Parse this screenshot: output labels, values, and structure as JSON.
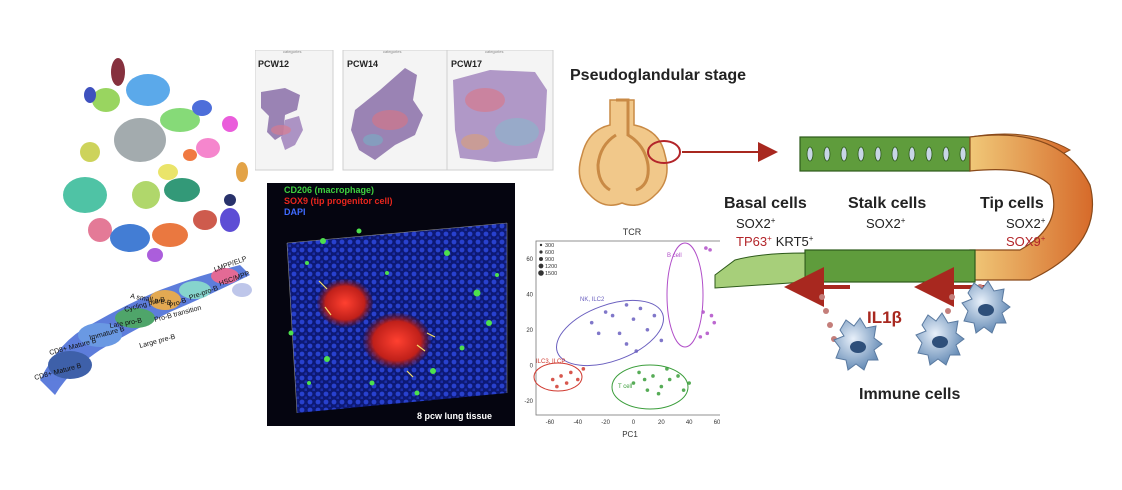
{
  "spatial": {
    "panels": [
      {
        "label": "PCW12",
        "header": "categories"
      },
      {
        "label": "PCW14",
        "header": "categories"
      },
      {
        "label": "PCW17",
        "header": "categories"
      }
    ]
  },
  "umap": {
    "cluster_labels": [
      "LMPP/ELP",
      "HSC/MPP",
      "Pre-pro-B",
      "Pro-B",
      "A small pre-B",
      "Cycling pre-B",
      "Pro-B transition",
      "Late pro-B",
      "Immature B",
      "Large pre-B",
      "CD8+ Mature B",
      "CD8+ Mature B"
    ]
  },
  "microscopy": {
    "legend": [
      {
        "text": "CD206 (macrophage)",
        "color": "#3fd13f"
      },
      {
        "text": "SOX9 (tip progenitor cell)",
        "color": "#e8261d"
      },
      {
        "text": "DAPI",
        "color": "#3f6bff"
      }
    ],
    "caption": "8 pcw lung tissue"
  },
  "pca": {
    "title": "TCR",
    "xlabel": "PC1",
    "size_legend": [
      "300",
      "600",
      "900",
      "1200",
      "1500"
    ],
    "group_labels": [
      {
        "text": "B cell",
        "color": "#b04dc8"
      },
      {
        "text": "NK, ILC2",
        "color": "#6a5fbf"
      },
      {
        "text": "ILC3, ILCP",
        "color": "#d0392f"
      },
      {
        "text": "T cell",
        "color": "#3a9d3a"
      }
    ]
  },
  "chart_data": {
    "type": "scatter",
    "title": "TCR",
    "xlabel": "PC1",
    "ylabel": "",
    "xlim": [
      -70,
      65
    ],
    "ylim": [
      -28,
      70
    ],
    "x_ticks": [
      -60,
      -40,
      -20,
      0,
      20,
      40,
      60
    ],
    "y_ticks": [
      -20,
      0,
      20,
      40,
      60
    ],
    "series": [
      {
        "name": "B cell",
        "points": [
          [
            52,
            66
          ],
          [
            55,
            65
          ],
          [
            50,
            30
          ],
          [
            56,
            28
          ],
          [
            53,
            18
          ],
          [
            48,
            16
          ],
          [
            58,
            24
          ]
        ]
      },
      {
        "name": "NK, ILC2",
        "points": [
          [
            -20,
            30
          ],
          [
            -15,
            28
          ],
          [
            -5,
            34
          ],
          [
            0,
            26
          ],
          [
            5,
            32
          ],
          [
            10,
            20
          ],
          [
            -10,
            18
          ],
          [
            -25,
            18
          ],
          [
            15,
            28
          ],
          [
            -5,
            12
          ],
          [
            20,
            14
          ],
          [
            -30,
            24
          ],
          [
            2,
            8
          ]
        ]
      },
      {
        "name": "ILC3, ILCP",
        "points": [
          [
            -58,
            -8
          ],
          [
            -52,
            -6
          ],
          [
            -45,
            -4
          ],
          [
            -40,
            -8
          ],
          [
            -36,
            -2
          ],
          [
            -48,
            -10
          ],
          [
            -55,
            -12
          ]
        ]
      },
      {
        "name": "T cell",
        "points": [
          [
            0,
            -10
          ],
          [
            8,
            -8
          ],
          [
            14,
            -6
          ],
          [
            20,
            -12
          ],
          [
            26,
            -8
          ],
          [
            32,
            -6
          ],
          [
            18,
            -16
          ],
          [
            10,
            -14
          ],
          [
            36,
            -14
          ],
          [
            24,
            -2
          ],
          [
            4,
            -4
          ],
          [
            40,
            -10
          ]
        ]
      }
    ]
  },
  "diagram": {
    "stage_title": "Pseudoglandular stage",
    "groups": [
      {
        "title": "Basal cells",
        "markers_black": "SOX2",
        "markers_red": "TP63",
        "markers_black2": "KRT5"
      },
      {
        "title": "Stalk cells",
        "markers_black": "SOX2"
      },
      {
        "title": "Tip cells",
        "markers_black": "SOX2",
        "markers_red": "SOX9"
      }
    ],
    "cytokine": "IL1β",
    "immune_label": "Immune cells",
    "superscript": "+"
  }
}
